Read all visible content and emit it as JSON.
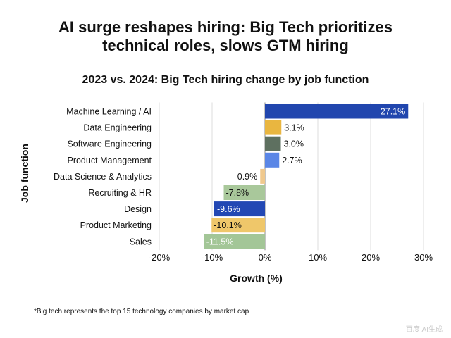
{
  "header": {
    "title_line1": "AI surge reshapes hiring: Big Tech prioritizes",
    "title_line2": "technical roles, slows GTM hiring",
    "subtitle": "2023 vs. 2024: Big Tech hiring change by job function"
  },
  "footnote": "*Big tech represents the top 15 technology companies by market cap",
  "watermark": "百度 AI生成",
  "chart_data": {
    "type": "bar",
    "orientation": "horizontal",
    "title": "2023 vs. 2024: Big Tech hiring change by job function",
    "xlabel": "Growth (%)",
    "ylabel": "Job function",
    "xlim": [
      -20,
      30
    ],
    "xticks": [
      -20,
      -10,
      0,
      10,
      20,
      30
    ],
    "xtick_labels": [
      "-20%",
      "-10%",
      "0%",
      "10%",
      "20%",
      "30%"
    ],
    "grid": "vertical",
    "categories": [
      "Machine Learning / AI",
      "Data Engineering",
      "Software Engineering",
      "Product Management",
      "Data Science & Analytics",
      "Recruiting & HR",
      "Design",
      "Product Marketing",
      "Sales"
    ],
    "values": [
      27.1,
      3.1,
      3.0,
      2.7,
      -0.9,
      -7.8,
      -9.6,
      -10.1,
      -11.5
    ],
    "value_labels": [
      "27.1%",
      "3.1%",
      "3.0%",
      "2.7%",
      "-0.9%",
      "-7.8%",
      "-9.6%",
      "-10.1%",
      "-11.5%"
    ],
    "colors": [
      "#2146ae",
      "#e9b640",
      "#5e7060",
      "#5a86e6",
      "#f0c98e",
      "#a9c89b",
      "#2348b4",
      "#efc76a",
      "#a3c697"
    ],
    "label_inside": [
      true,
      false,
      false,
      false,
      false,
      false,
      true,
      false,
      false
    ],
    "label_light": [
      true,
      false,
      false,
      false,
      false,
      false,
      true,
      false,
      true
    ]
  }
}
